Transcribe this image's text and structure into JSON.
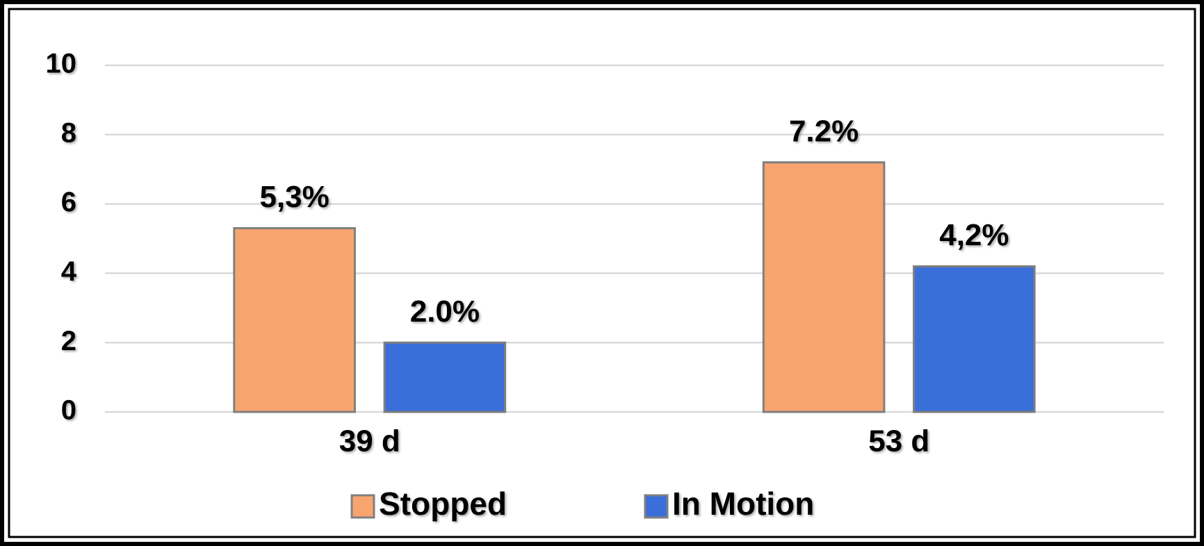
{
  "chart_data": {
    "type": "bar",
    "categories": [
      "39 d",
      "53 d"
    ],
    "series": [
      {
        "name": "Stopped",
        "color": "#f8a46f",
        "values": [
          5.3,
          7.2
        ],
        "value_labels": [
          "5,3%",
          "7.2%"
        ]
      },
      {
        "name": "In Motion",
        "color": "#3a6ed8",
        "values": [
          2.0,
          4.2
        ],
        "value_labels": [
          "2.0%",
          "4,2%"
        ]
      }
    ],
    "ylim": [
      0,
      10
    ],
    "yticks": [
      0,
      2,
      4,
      6,
      8,
      10
    ],
    "grid": true,
    "legend": "bottom"
  }
}
